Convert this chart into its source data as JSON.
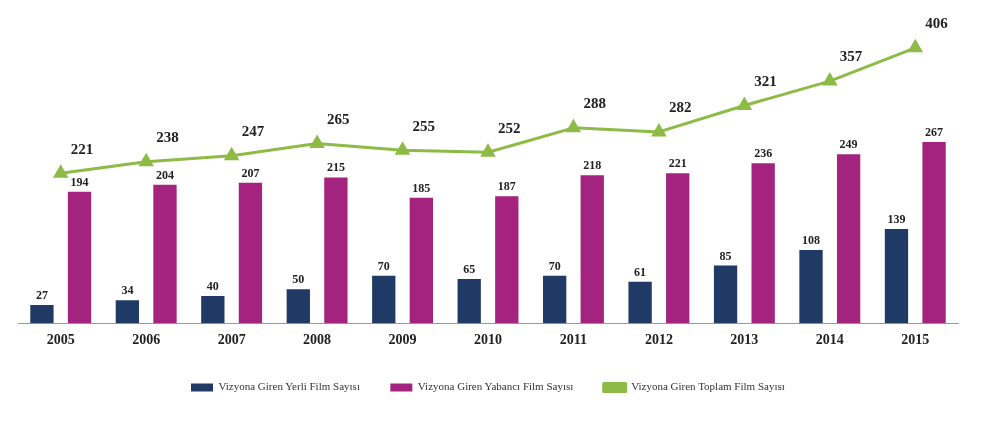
{
  "chart_data": {
    "type": "bar",
    "categories": [
      "2005",
      "2006",
      "2007",
      "2008",
      "2009",
      "2010",
      "2011",
      "2012",
      "2013",
      "2014",
      "2015"
    ],
    "series": [
      {
        "name": "Vizyona Giren Yerli Film Sayısı",
        "color": "#1f3a64",
        "values": [
          27,
          34,
          40,
          50,
          70,
          65,
          70,
          61,
          85,
          108,
          139
        ]
      },
      {
        "name": "Vizyona Giren Yabancı Film Sayısı",
        "color": "#a3237f",
        "values": [
          194,
          204,
          207,
          215,
          185,
          187,
          218,
          221,
          236,
          249,
          267
        ]
      },
      {
        "name": "Vizyona Giren Toplam Film Sayısı",
        "color": "#8dbb45",
        "type": "line",
        "marker": "triangle",
        "values": [
          221,
          238,
          247,
          265,
          255,
          252,
          288,
          282,
          321,
          357,
          406
        ]
      }
    ],
    "data_labels": true,
    "legend": "bottom",
    "grid": false
  }
}
